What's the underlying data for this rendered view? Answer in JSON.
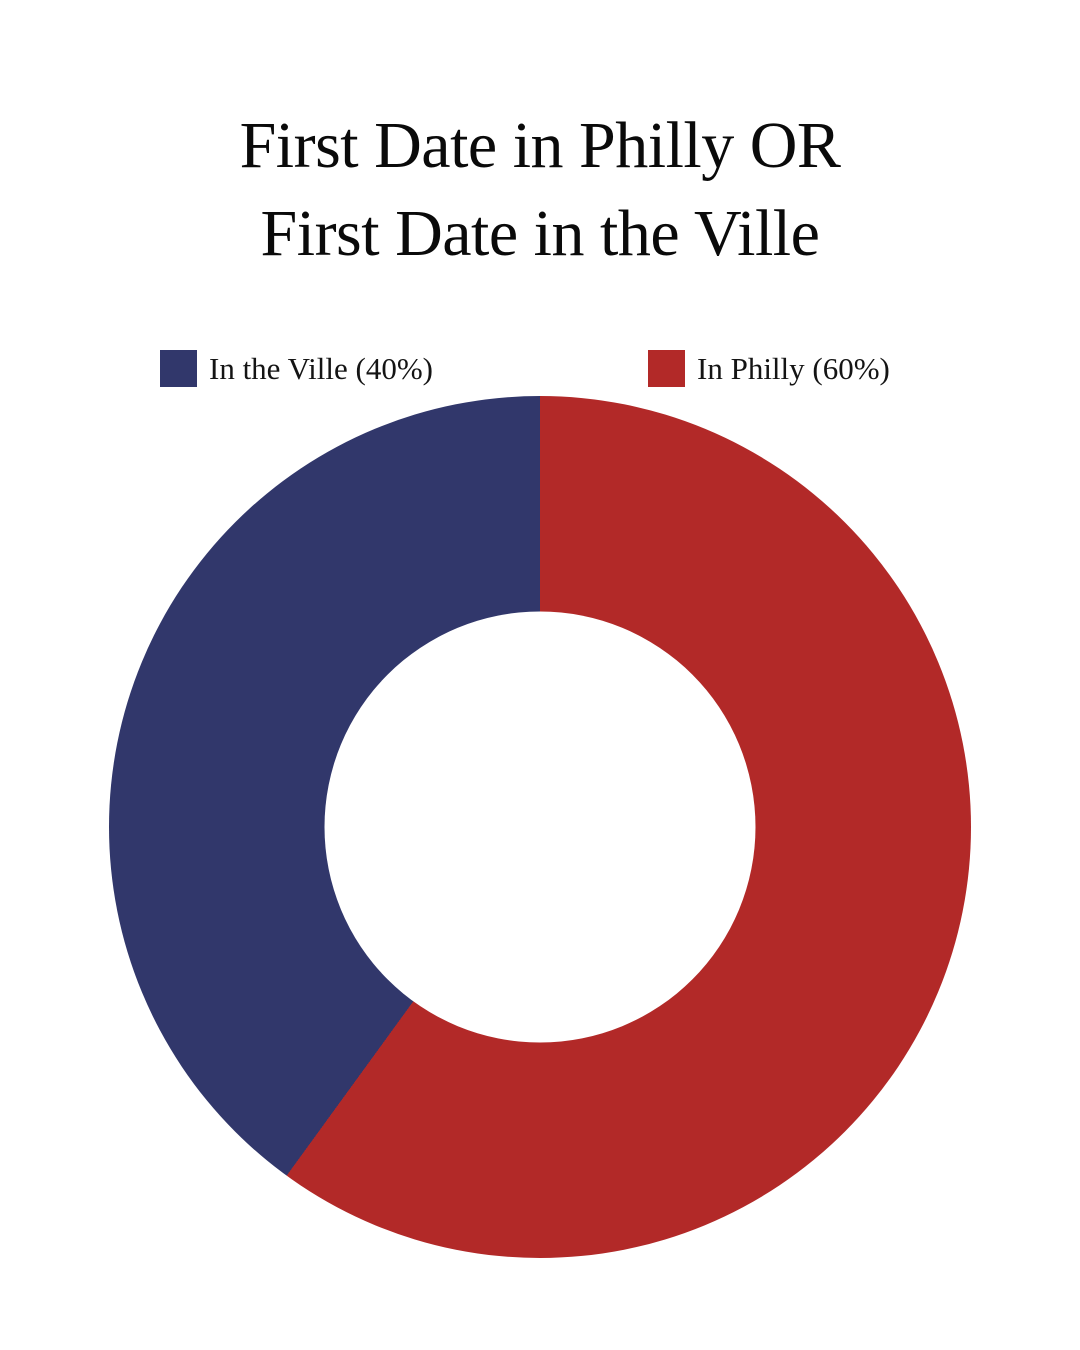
{
  "chart_data": {
    "type": "pie",
    "variant": "donut",
    "title_lines": [
      "First Date in Philly OR",
      "First Date in the Ville"
    ],
    "slices": [
      {
        "name": "In Philly",
        "value": 60,
        "color": "#b22928"
      },
      {
        "name": "In the Ville",
        "value": 40,
        "color": "#31376b"
      }
    ],
    "start_angle_deg": 0,
    "direction": "clockwise",
    "hole_ratio": 0.5,
    "legend_position": "top",
    "legend": [
      {
        "label": "In the Ville (40%)",
        "color": "#31376b"
      },
      {
        "label": "In Philly (60%)",
        "color": "#b22928"
      }
    ]
  },
  "colors": {
    "background": "#ffffff",
    "title_text": "#0a0a0a",
    "legend_text": "#141414"
  }
}
